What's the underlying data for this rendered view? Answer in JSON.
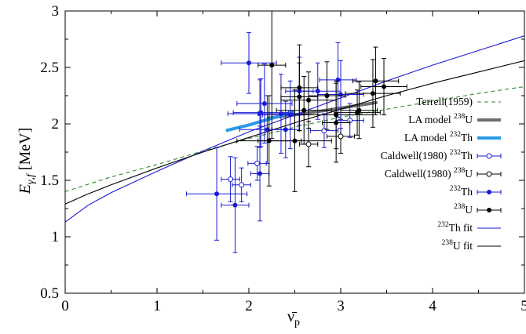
{
  "chart_data": {
    "type": "scatter",
    "title": "",
    "xlabel": "ν̄",
    "xlabel_sub": "p",
    "ylabel": "E",
    "ylabel_sub": "γ,f",
    "ylabel_unit": "[MeV]",
    "xlim": [
      0,
      5
    ],
    "ylim": [
      0.5,
      3
    ],
    "xticks": [
      0,
      1,
      2,
      3,
      4,
      5
    ],
    "yticks": [
      0.5,
      1,
      1.5,
      2,
      2.5,
      3
    ],
    "xtick_labels": [
      "0",
      "1",
      "2",
      "3",
      "4",
      "5"
    ],
    "ytick_labels": [
      "0.5",
      "1",
      "1.5",
      "2",
      "2.5",
      "3"
    ],
    "grid": false,
    "legend_position": "right",
    "colors": {
      "black": "#000000",
      "blue": "#1a1ad6",
      "gray": "#6e6e6e",
      "lightblue": "#2b9ae6",
      "green": "#2a8a2a"
    },
    "legend": [
      {
        "id": "terrell",
        "label": "Terrell(1959)",
        "style": "dashed-green"
      },
      {
        "id": "la238",
        "label": "LA model ",
        "iso": "238",
        "el": "U",
        "style": "thick-gray"
      },
      {
        "id": "la232",
        "label": "LA model ",
        "iso": "232",
        "el": "Th",
        "style": "thick-lightblue"
      },
      {
        "id": "cald232",
        "label": "Caldwell(1980) ",
        "iso": "232",
        "el": "Th",
        "style": "open-blue"
      },
      {
        "id": "cald238",
        "label": "Caldwell(1980) ",
        "iso": "238",
        "el": "U",
        "style": "open-black"
      },
      {
        "id": "th232",
        "label": "",
        "iso": "232",
        "el": "Th",
        "style": "filled-blue"
      },
      {
        "id": "u238",
        "label": "",
        "iso": "238",
        "el": "U",
        "style": "filled-black"
      },
      {
        "id": "thfit",
        "label": "",
        "iso": "232",
        "el": "Th fit",
        "style": "line-blue"
      },
      {
        "id": "ufit",
        "label": "",
        "iso": "238",
        "el": "U fit",
        "style": "line-black"
      }
    ],
    "series": [
      {
        "name": "Terrell(1959)",
        "kind": "curve",
        "color": "#2a8a2a",
        "dash": true,
        "width": 1.1,
        "x": [
          0,
          0.5,
          1,
          1.5,
          2,
          2.5,
          3,
          3.5,
          4,
          4.5,
          5
        ],
        "y": [
          1.4,
          1.53,
          1.64,
          1.76,
          1.87,
          1.97,
          2.06,
          2.13,
          2.2,
          2.27,
          2.33
        ]
      },
      {
        "name": "LA model 238U",
        "kind": "curve",
        "color": "#6e6e6e",
        "width": 4,
        "x": [
          2.2,
          2.6,
          3.0,
          3.4
        ],
        "y": [
          2.05,
          2.09,
          2.14,
          2.19
        ]
      },
      {
        "name": "LA model 232Th",
        "kind": "curve",
        "color": "#2b9ae6",
        "width": 4,
        "x": [
          1.75,
          2.0,
          2.25,
          2.5
        ],
        "y": [
          1.94,
          1.99,
          2.05,
          2.11
        ]
      },
      {
        "name": "232Th fit",
        "kind": "curve",
        "color": "#1a1ad6",
        "width": 1.1,
        "x": [
          0,
          0.25,
          0.5,
          1,
          1.5,
          2,
          2.5,
          3,
          3.5,
          4,
          4.5,
          5
        ],
        "y": [
          1.13,
          1.28,
          1.39,
          1.58,
          1.76,
          1.93,
          2.08,
          2.23,
          2.38,
          2.52,
          2.65,
          2.78
        ]
      },
      {
        "name": "238U fit",
        "kind": "curve",
        "color": "#000000",
        "width": 1.1,
        "x": [
          0,
          0.25,
          0.5,
          1,
          1.5,
          2,
          2.5,
          3,
          3.5,
          4,
          4.5,
          5
        ],
        "y": [
          1.29,
          1.38,
          1.46,
          1.61,
          1.75,
          1.88,
          2.01,
          2.13,
          2.25,
          2.36,
          2.46,
          2.56
        ]
      },
      {
        "name": "Caldwell(1980) 232Th",
        "kind": "points",
        "marker": "open",
        "color": "#1a1ad6",
        "points": [
          {
            "x": 1.8,
            "y": 1.51,
            "xerr": 0.1,
            "yerr": 0.2
          },
          {
            "x": 1.92,
            "y": 1.46,
            "xerr": 0.1,
            "yerr": 0.15
          },
          {
            "x": 2.09,
            "y": 1.65,
            "xerr": 0.1,
            "yerr": 0.15
          },
          {
            "x": 2.82,
            "y": 1.94,
            "xerr": 0.15,
            "yerr": 0.15
          },
          {
            "x": 3.1,
            "y": 2.03,
            "xerr": 0.15,
            "yerr": 0.15
          }
        ]
      },
      {
        "name": "Caldwell(1980) 238U",
        "kind": "points",
        "marker": "open",
        "color": "#000000",
        "points": [
          {
            "x": 2.65,
            "y": 1.82,
            "xerr": 0.1,
            "yerr": 0.2
          },
          {
            "x": 3.0,
            "y": 1.89,
            "xerr": 0.15,
            "yerr": 0.15
          }
        ]
      },
      {
        "name": "232Th",
        "kind": "points",
        "marker": "filled",
        "color": "#1a1ad6",
        "points": [
          {
            "x": 1.65,
            "y": 1.38,
            "xerr": 0.33,
            "yerr": 0.41
          },
          {
            "x": 1.85,
            "y": 1.28,
            "xerr": 0.15,
            "yerr": 0.42
          },
          {
            "x": 2.0,
            "y": 2.54,
            "xerr": 0.3,
            "yerr": 0.27
          },
          {
            "x": 2.12,
            "y": 1.56,
            "xerr": 0.1,
            "yerr": 0.42
          },
          {
            "x": 2.12,
            "y": 2.09,
            "xerr": 0.35,
            "yerr": 0.3
          },
          {
            "x": 2.13,
            "y": 2.1,
            "xerr": 0.3,
            "yerr": 0.3
          },
          {
            "x": 2.17,
            "y": 2.18,
            "xerr": 0.3,
            "yerr": 0.35
          },
          {
            "x": 2.2,
            "y": 1.95,
            "xerr": 0.3,
            "yerr": 0.3
          },
          {
            "x": 2.35,
            "y": 2.09,
            "xerr": 0.25,
            "yerr": 0.35
          },
          {
            "x": 2.4,
            "y": 1.95,
            "xerr": 0.15,
            "yerr": 0.25
          },
          {
            "x": 2.45,
            "y": 2.08,
            "xerr": 0.3,
            "yerr": 0.3
          },
          {
            "x": 2.55,
            "y": 2.29,
            "xerr": 0.15,
            "yerr": 0.3
          },
          {
            "x": 2.75,
            "y": 2.29,
            "xerr": 0.25,
            "yerr": 0.25
          },
          {
            "x": 2.97,
            "y": 2.39,
            "xerr": 0.2,
            "yerr": 0.33
          },
          {
            "x": 3.0,
            "y": 2.26,
            "xerr": 0.25,
            "yerr": 0.3
          }
        ]
      },
      {
        "name": "238U",
        "kind": "points",
        "marker": "filled",
        "color": "#000000",
        "points": [
          {
            "x": 2.22,
            "y": 1.85,
            "xerr": 0.35,
            "yerr": 0.4
          },
          {
            "x": 2.25,
            "y": 2.52,
            "xerr": 0.15,
            "yerr": 0.65
          },
          {
            "x": 2.5,
            "y": 1.85,
            "xerr": 0.4,
            "yerr": 0.45
          },
          {
            "x": 2.55,
            "y": 2.32,
            "xerr": 0.2,
            "yerr": 0.38
          },
          {
            "x": 2.55,
            "y": 2.24,
            "xerr": 0.2,
            "yerr": 0.3
          },
          {
            "x": 2.6,
            "y": 2.12,
            "xerr": 0.3,
            "yerr": 0.3
          },
          {
            "x": 2.65,
            "y": 2.21,
            "xerr": 0.3,
            "yerr": 0.25
          },
          {
            "x": 2.85,
            "y": 2.25,
            "xerr": 0.2,
            "yerr": 0.3
          },
          {
            "x": 2.95,
            "y": 2.08,
            "xerr": 0.4,
            "yerr": 0.3
          },
          {
            "x": 2.95,
            "y": 2.01,
            "xerr": 0.15,
            "yerr": 0.35
          },
          {
            "x": 3.18,
            "y": 2.1,
            "xerr": 0.25,
            "yerr": 0.2
          },
          {
            "x": 3.2,
            "y": 2.12,
            "xerr": 0.2,
            "yerr": 0.25
          },
          {
            "x": 3.35,
            "y": 2.27,
            "xerr": 0.3,
            "yerr": 0.3
          },
          {
            "x": 3.38,
            "y": 2.38,
            "xerr": 0.25,
            "yerr": 0.3
          },
          {
            "x": 3.47,
            "y": 2.33,
            "xerr": 0.25,
            "yerr": 0.25
          }
        ]
      }
    ]
  }
}
